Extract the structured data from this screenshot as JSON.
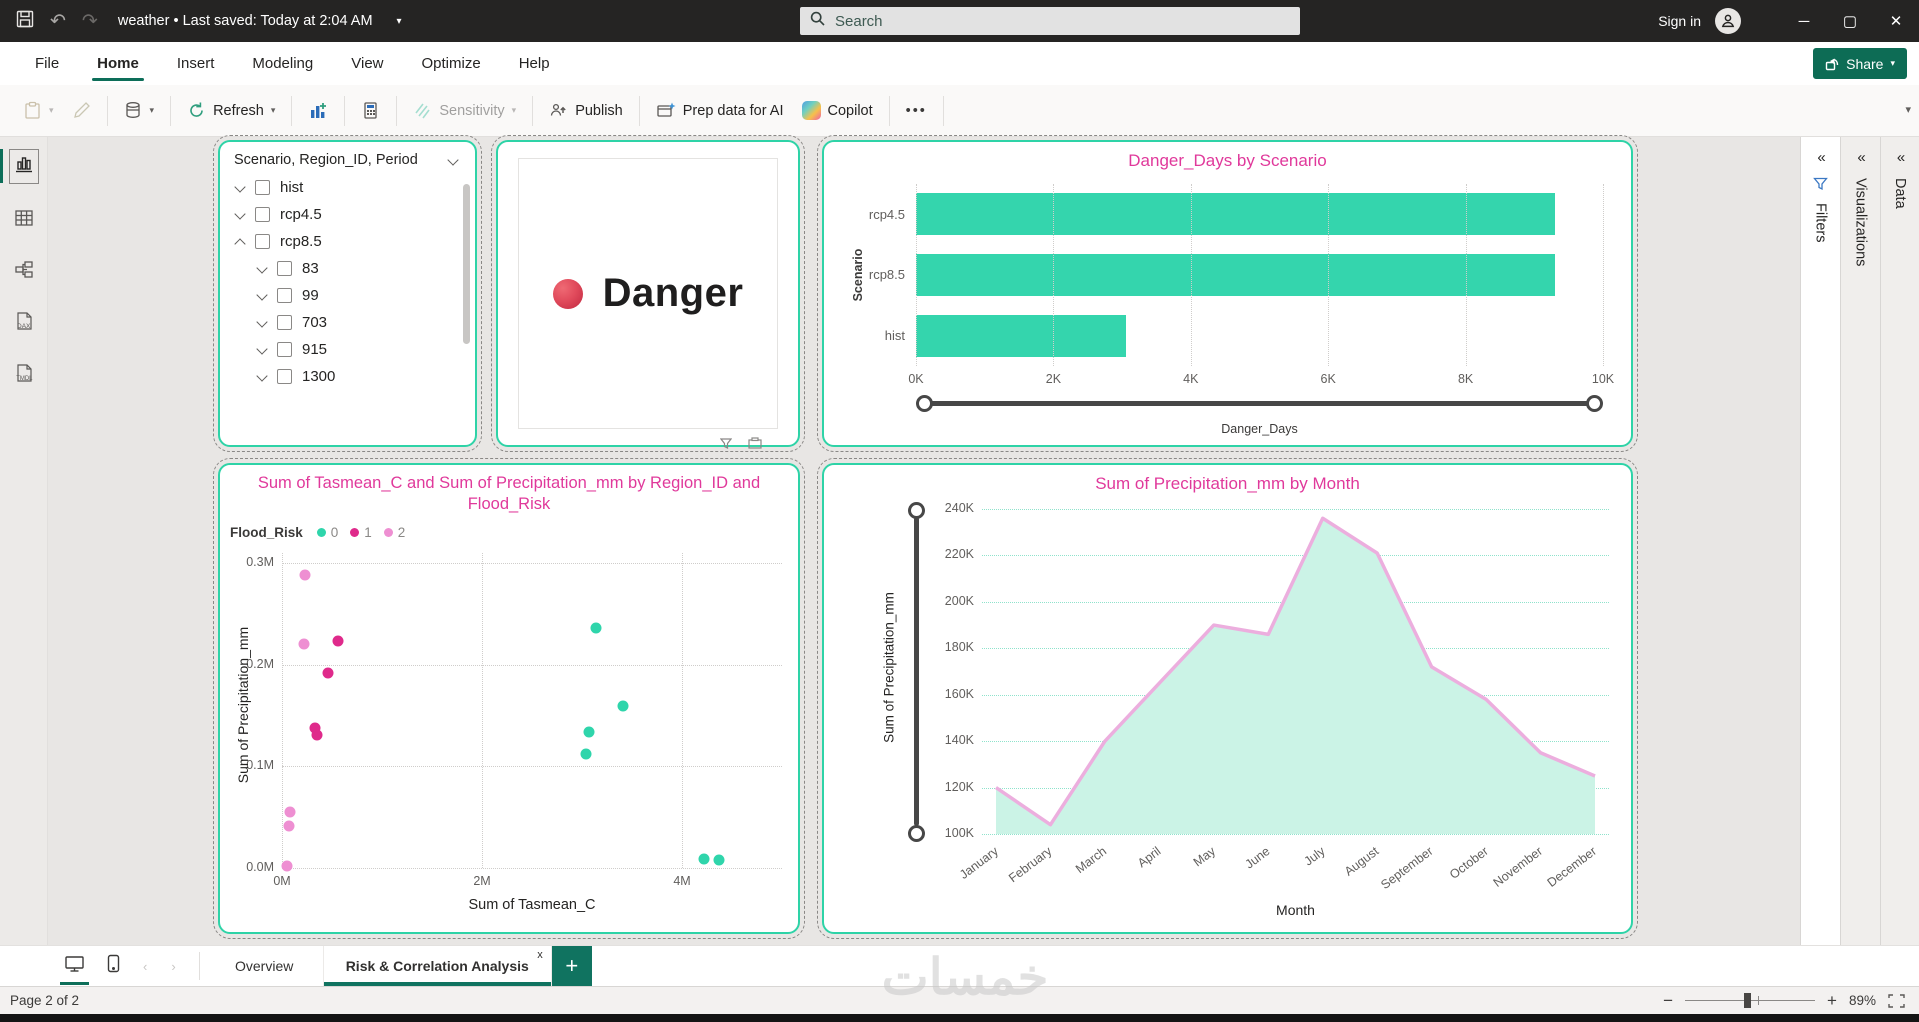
{
  "titlebar": {
    "title": "weather • Last saved: Today at 2:04 AM",
    "search_placeholder": "Search",
    "sign_in": "Sign in"
  },
  "menubar": {
    "items": [
      "File",
      "Home",
      "Insert",
      "Modeling",
      "View",
      "Optimize",
      "Help"
    ],
    "active": "Home",
    "share_label": "Share"
  },
  "toolbar": {
    "refresh_label": "Refresh",
    "sensitivity_label": "Sensitivity",
    "publish_label": "Publish",
    "prep_ai_label": "Prep data for AI",
    "copilot_label": "Copilot",
    "more_label": "•••"
  },
  "right_rails": {
    "filters": "Filters",
    "visualizations": "Visualizations",
    "data": "Data"
  },
  "slicer": {
    "header": "Scenario, Region_ID, Period",
    "items": [
      {
        "label": "hist",
        "level": 0,
        "expanded": false
      },
      {
        "label": "rcp4.5",
        "level": 0,
        "expanded": false
      },
      {
        "label": "rcp8.5",
        "level": 0,
        "expanded": true
      },
      {
        "label": "83",
        "level": 1,
        "expanded": false
      },
      {
        "label": "99",
        "level": 1,
        "expanded": false
      },
      {
        "label": "703",
        "level": 1,
        "expanded": false
      },
      {
        "label": "915",
        "level": 1,
        "expanded": false
      },
      {
        "label": "1300",
        "level": 1,
        "expanded": false
      }
    ]
  },
  "card": {
    "label": "Danger"
  },
  "chart_data": [
    {
      "type": "bar",
      "orientation": "horizontal",
      "title": "Danger_Days by Scenario",
      "categories": [
        "rcp4.5",
        "rcp8.5",
        "hist"
      ],
      "values": [
        9300,
        9300,
        3050
      ],
      "xlim": [
        0,
        10000
      ],
      "xticks": {
        "values": [
          0,
          2000,
          4000,
          6000,
          8000,
          10000
        ],
        "labels": [
          "0K",
          "2K",
          "4K",
          "6K",
          "8K",
          "10K"
        ]
      },
      "ylabel": "Scenario",
      "slider_label": "Danger_Days",
      "bar_color": "#34d5ad"
    },
    {
      "type": "scatter",
      "title": "Sum of Tasmean_C and Sum of Precipitation_mm by Region_ID and Flood_Risk",
      "legend_title": "Flood_Risk",
      "xlabel": "Sum of Tasmean_C",
      "ylabel": "Sum of Precipitation_mm",
      "xlim": [
        0,
        5
      ],
      "ylim": [
        0,
        0.31
      ],
      "xticks": {
        "values": [
          0,
          2,
          4
        ],
        "labels": [
          "0M",
          "2M",
          "4M"
        ]
      },
      "yticks": {
        "values": [
          0,
          0.1,
          0.2,
          0.3
        ],
        "labels": [
          "0.0M",
          "0.1M",
          "0.2M",
          "0.3M"
        ]
      },
      "series": [
        {
          "name": "0",
          "color": "#2fd5ab",
          "points": [
            [
              3.14,
              0.236
            ],
            [
              3.41,
              0.159
            ],
            [
              3.07,
              0.134
            ],
            [
              3.04,
              0.112
            ],
            [
              4.22,
              0.009
            ],
            [
              4.37,
              0.008
            ]
          ]
        },
        {
          "name": "1",
          "color": "#df2a8b",
          "points": [
            [
              0.56,
              0.223
            ],
            [
              0.46,
              0.192
            ],
            [
              0.33,
              0.138
            ],
            [
              0.35,
              0.131
            ]
          ]
        },
        {
          "name": "2",
          "color": "#ee8fd2",
          "points": [
            [
              0.23,
              0.288
            ],
            [
              0.22,
              0.22
            ],
            [
              0.08,
              0.055
            ],
            [
              0.07,
              0.041
            ],
            [
              0.05,
              0.002
            ]
          ]
        }
      ]
    },
    {
      "type": "area",
      "title": "Sum of Precipitation_mm by Month",
      "xlabel": "Month",
      "ylabel": "Sum of Precipitation_mm",
      "categories": [
        "January",
        "February",
        "March",
        "April",
        "May",
        "June",
        "July",
        "August",
        "September",
        "October",
        "November",
        "December"
      ],
      "values": [
        120000,
        104000,
        140000,
        165000,
        190000,
        186000,
        236000,
        221000,
        172000,
        158000,
        135000,
        125000
      ],
      "ylim": [
        100000,
        240000
      ],
      "yticks": {
        "values": [
          100000,
          120000,
          140000,
          160000,
          180000,
          200000,
          220000,
          240000
        ],
        "labels": [
          "100K",
          "120K",
          "140K",
          "160K",
          "180K",
          "200K",
          "220K",
          "240K"
        ]
      },
      "fill_color": "#cbf3e6",
      "line_color": "#ecaede"
    }
  ],
  "tabs": {
    "overview": "Overview",
    "active": "Risk & Correlation Analysis",
    "close": "x",
    "add": "+"
  },
  "status": {
    "page": "Page 2 of 2",
    "zoom": "89%"
  },
  "watermark": "خمسات",
  "colors": {
    "accent_teal": "#2ed3a7",
    "title_pink": "#e0399b",
    "share_green": "#0d6c55"
  }
}
